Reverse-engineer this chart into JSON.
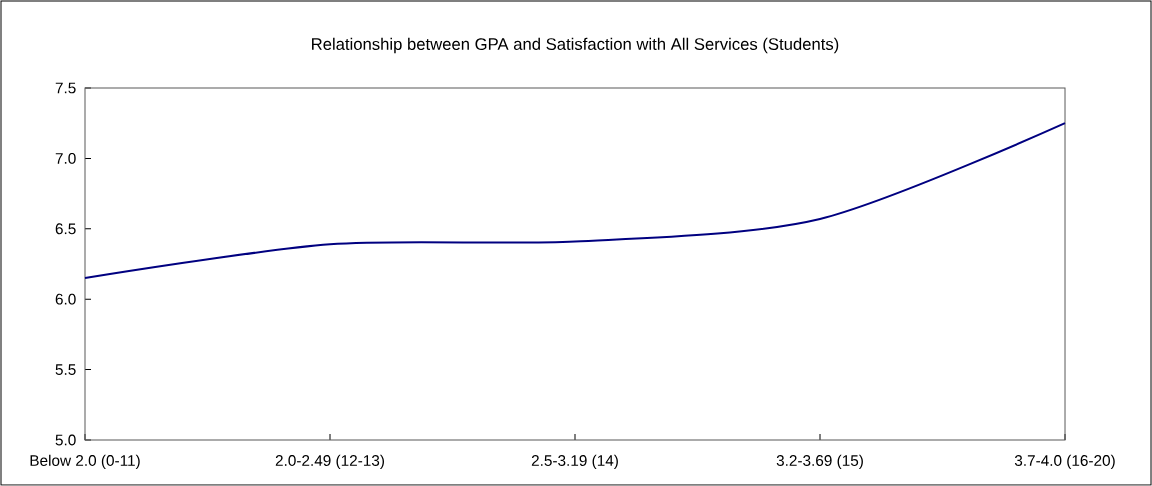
{
  "chart_data": {
    "type": "line",
    "title": "Relationship between GPA and Satisfaction with All Services (Students)",
    "categories": [
      "Below 2.0 (0-11)",
      "2.0-2.49 (12-13)",
      "2.5-3.19 (14)",
      "3.2-3.69 (15)",
      "3.7-4.0 (16-20)"
    ],
    "series": [
      {
        "color": "#000080",
        "values": [
          6.15,
          6.39,
          6.41,
          6.57,
          7.25
        ]
      }
    ],
    "ylim": [
      5,
      7.5
    ],
    "yticks": [
      {
        "value": 5,
        "label": "5.0"
      },
      {
        "value": 5.5,
        "label": "5.5"
      },
      {
        "value": 6,
        "label": "6.0"
      },
      {
        "value": 6.5,
        "label": "6.5"
      },
      {
        "value": 7,
        "label": "7.0"
      },
      {
        "value": 7.5,
        "label": "7.5"
      }
    ]
  }
}
